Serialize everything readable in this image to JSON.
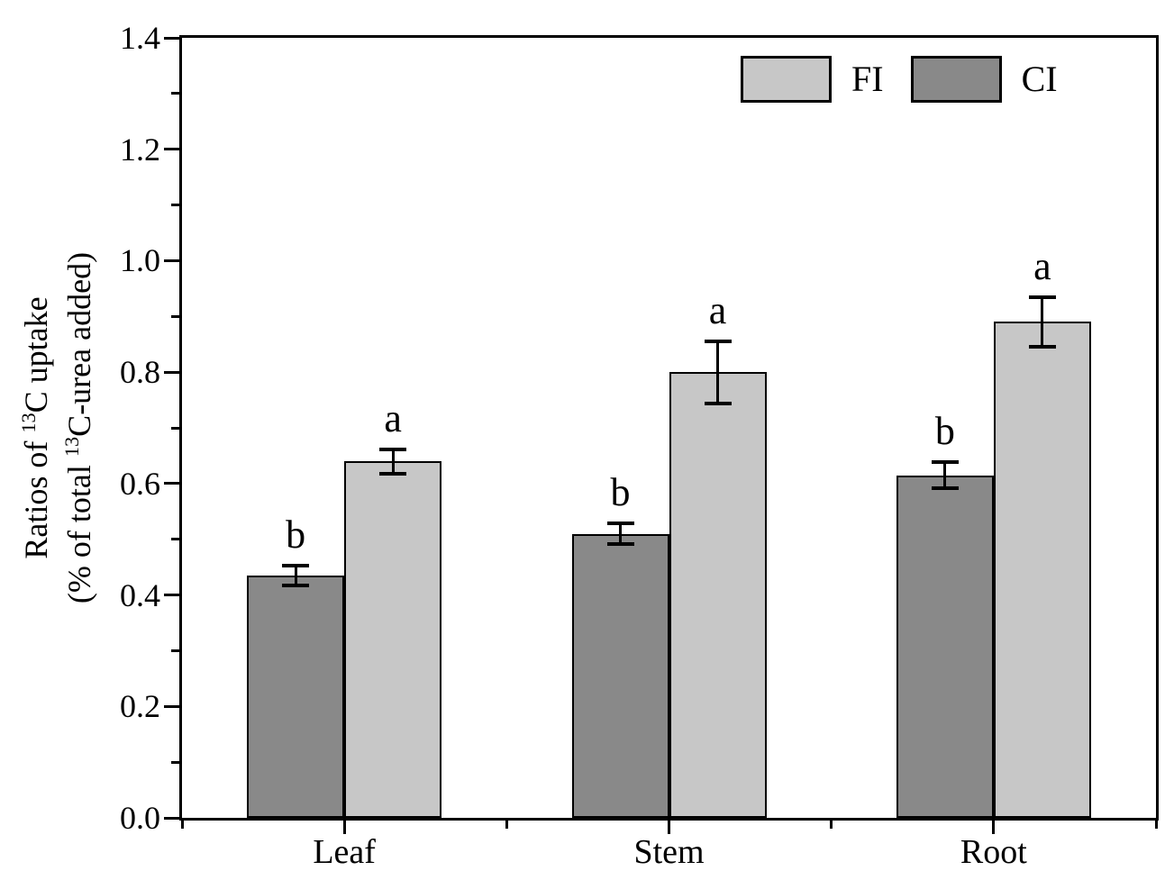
{
  "figure": {
    "background": "#ffffff",
    "text_color": "#000000"
  },
  "chart_data": {
    "type": "bar",
    "title": "",
    "xlabel": "",
    "ylabel_line1": "Ratios of ^{13}C uptake",
    "ylabel_line2": "(% of total ^{13}C-urea added)",
    "categories": [
      "Leaf",
      "Stem",
      "Root"
    ],
    "ylim": [
      0,
      1.4
    ],
    "ytick_labels": [
      "0.0",
      "0.2",
      "0.4",
      "0.6",
      "0.8",
      "1.0",
      "1.2",
      "1.4"
    ],
    "ytick_major_step": 0.2,
    "ytick_minor_step": 0.1,
    "grid": false,
    "legend_position": "top-right-inside",
    "group_draw_order": [
      "CI",
      "FI"
    ],
    "series": [
      {
        "name": "FI",
        "color": "#c7c7c7",
        "values": [
          0.64,
          0.8,
          0.89
        ],
        "errors": [
          0.022,
          0.056,
          0.045
        ],
        "sig_letters": [
          "a",
          "a",
          "a"
        ]
      },
      {
        "name": "CI",
        "color": "#898989",
        "values": [
          0.435,
          0.51,
          0.615
        ],
        "errors": [
          0.018,
          0.019,
          0.023
        ],
        "sig_letters": [
          "b",
          "b",
          "b"
        ]
      }
    ],
    "bar_edge_color": "#000000",
    "error_bar_color": "#000000"
  }
}
